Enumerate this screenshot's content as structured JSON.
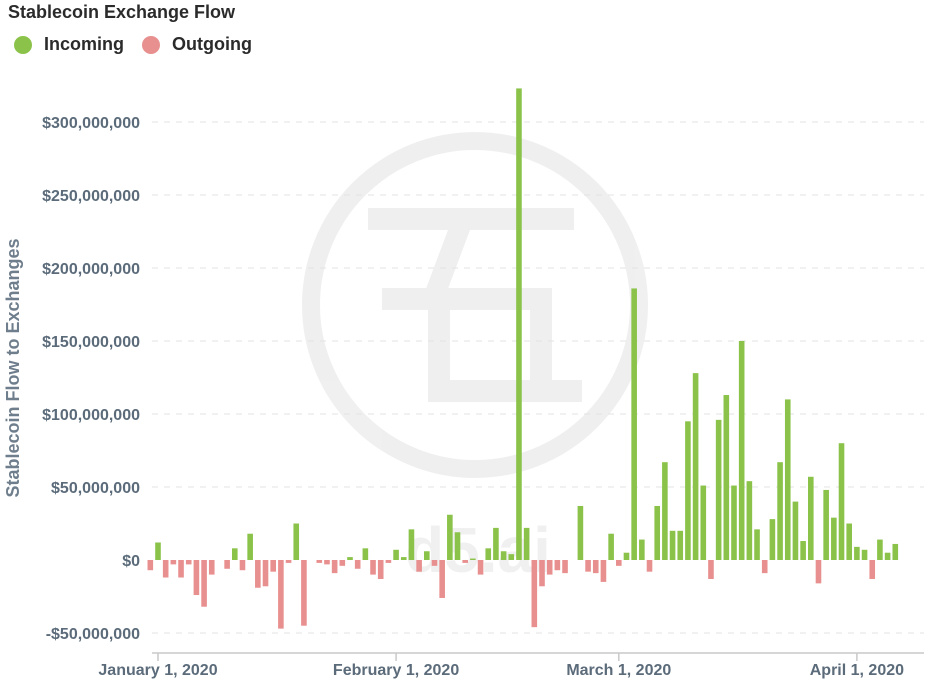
{
  "title": "Stablecoin Exchange Flow",
  "legend": [
    {
      "label": "Incoming",
      "color": "#8bc34a"
    },
    {
      "label": "Outgoing",
      "color": "#e8908f"
    }
  ],
  "watermark": {
    "icon": "d5-logo-icon",
    "text": "d5.ai"
  },
  "chart_data": {
    "type": "bar",
    "title": "Stablecoin Exchange Flow",
    "ylabel": "Stablecoin Flow to Exchanges",
    "xlabel": "",
    "ylim": [
      -60000000,
      330000000
    ],
    "grid": true,
    "legend_position": "top-left",
    "y_ticks": [
      {
        "value": -50000000,
        "label": "-$50,000,000"
      },
      {
        "value": 0,
        "label": "$0"
      },
      {
        "value": 50000000,
        "label": "$50,000,000"
      },
      {
        "value": 100000000,
        "label": "$100,000,000"
      },
      {
        "value": 150000000,
        "label": "$150,000,000"
      },
      {
        "value": 200000000,
        "label": "$200,000,000"
      },
      {
        "value": 250000000,
        "label": "$250,000,000"
      },
      {
        "value": 300000000,
        "label": "$300,000,000"
      }
    ],
    "x_ticks": [
      {
        "date": "2020-01-01",
        "label": "January 1, 2020"
      },
      {
        "date": "2020-02-01",
        "label": "February 1, 2020"
      },
      {
        "date": "2020-03-01",
        "label": "March 1, 2020"
      },
      {
        "date": "2020-04-01",
        "label": "April 1, 2020"
      }
    ],
    "x": [
      "2019-12-31",
      "2020-01-01",
      "2020-01-02",
      "2020-01-03",
      "2020-01-04",
      "2020-01-05",
      "2020-01-06",
      "2020-01-07",
      "2020-01-08",
      "2020-01-09",
      "2020-01-10",
      "2020-01-11",
      "2020-01-12",
      "2020-01-13",
      "2020-01-14",
      "2020-01-15",
      "2020-01-16",
      "2020-01-17",
      "2020-01-18",
      "2020-01-19",
      "2020-01-20",
      "2020-01-21",
      "2020-01-22",
      "2020-01-23",
      "2020-01-24",
      "2020-01-25",
      "2020-01-26",
      "2020-01-27",
      "2020-01-28",
      "2020-01-29",
      "2020-01-30",
      "2020-01-31",
      "2020-02-01",
      "2020-02-02",
      "2020-02-03",
      "2020-02-04",
      "2020-02-05",
      "2020-02-06",
      "2020-02-07",
      "2020-02-08",
      "2020-02-09",
      "2020-02-10",
      "2020-02-11",
      "2020-02-12",
      "2020-02-13",
      "2020-02-14",
      "2020-02-15",
      "2020-02-16",
      "2020-02-17",
      "2020-02-18",
      "2020-02-19",
      "2020-02-20",
      "2020-02-21",
      "2020-02-22",
      "2020-02-23",
      "2020-02-24",
      "2020-02-25",
      "2020-02-26",
      "2020-02-27",
      "2020-02-28",
      "2020-02-29",
      "2020-03-01",
      "2020-03-02",
      "2020-03-03",
      "2020-03-04",
      "2020-03-05",
      "2020-03-06",
      "2020-03-07",
      "2020-03-08",
      "2020-03-09",
      "2020-03-10",
      "2020-03-11",
      "2020-03-12",
      "2020-03-13",
      "2020-03-14",
      "2020-03-15",
      "2020-03-16",
      "2020-03-17",
      "2020-03-18",
      "2020-03-19",
      "2020-03-20",
      "2020-03-21",
      "2020-03-22",
      "2020-03-23",
      "2020-03-24",
      "2020-03-25",
      "2020-03-26",
      "2020-03-27",
      "2020-03-28",
      "2020-03-29",
      "2020-03-30",
      "2020-03-31",
      "2020-04-01",
      "2020-04-02",
      "2020-04-03",
      "2020-04-04",
      "2020-04-05",
      "2020-04-06"
    ],
    "values": [
      -7000000,
      12000000,
      -12000000,
      -3000000,
      -12000000,
      -3000000,
      -24000000,
      -32000000,
      -10000000,
      0,
      -6000000,
      8000000,
      -7000000,
      18000000,
      -19000000,
      -18000000,
      -8000000,
      -47000000,
      -2000000,
      25000000,
      -45000000,
      0,
      -2000000,
      -3000000,
      -9000000,
      -4000000,
      2000000,
      -6000000,
      8000000,
      -10000000,
      -13000000,
      -2000000,
      7000000,
      2000000,
      21000000,
      -8000000,
      6000000,
      -4000000,
      -26000000,
      31000000,
      19000000,
      -2000000,
      1000000,
      -10000000,
      8000000,
      22000000,
      6000000,
      4000000,
      323000000,
      22000000,
      -46000000,
      -18000000,
      -10000000,
      -7000000,
      -9000000,
      0,
      37000000,
      -8000000,
      -9000000,
      -15000000,
      18000000,
      -4000000,
      5000000,
      186000000,
      14000000,
      -8000000,
      37000000,
      67000000,
      20000000,
      20000000,
      95000000,
      128000000,
      51000000,
      -13000000,
      96000000,
      113000000,
      51000000,
      150000000,
      54000000,
      21000000,
      -9000000,
      28000000,
      67000000,
      110000000,
      40000000,
      13000000,
      57000000,
      -16000000,
      48000000,
      29000000,
      80000000,
      25000000,
      9000000,
      7000000,
      -13000000,
      14000000,
      5000000,
      11000000
    ],
    "series_colors": {
      "positive": "#8bc34a",
      "negative": "#e8908f"
    }
  }
}
